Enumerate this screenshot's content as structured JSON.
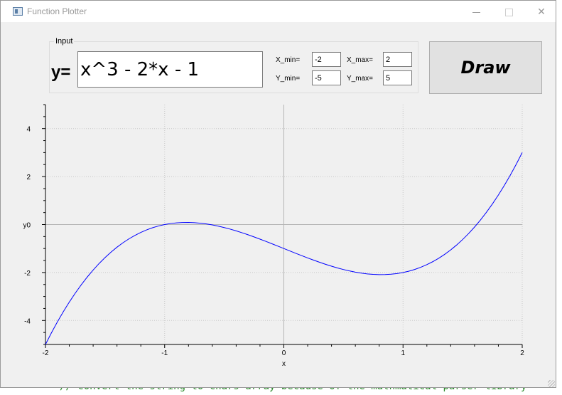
{
  "window": {
    "title": "Function Plotter"
  },
  "background": {
    "code_line": "// convert the string to chars array because of the mathmatical parser library"
  },
  "input_group": {
    "title": "Input",
    "y_label": "y=",
    "function_value": "x^3 - 2*x - 1",
    "x_min_label": "X_min=",
    "x_min_value": "-2",
    "x_max_label": "X_max=",
    "x_max_value": "2",
    "y_min_label": "Y_min=",
    "y_min_value": "-5",
    "y_max_label": "Y_max=",
    "y_max_value": "5"
  },
  "draw_button": {
    "label": "Draw"
  },
  "chart_data": {
    "type": "line",
    "function": "x^3 - 2*x - 1",
    "xlabel": "x",
    "ylabel": "y",
    "xlim": [
      -2,
      2
    ],
    "ylim": [
      -5,
      5
    ],
    "xticks": [
      -2,
      -1,
      0,
      1,
      2
    ],
    "yticks": [
      -4,
      -2,
      0,
      2,
      4
    ],
    "grid": true,
    "line_color": "#0000ff",
    "samples": 81
  }
}
